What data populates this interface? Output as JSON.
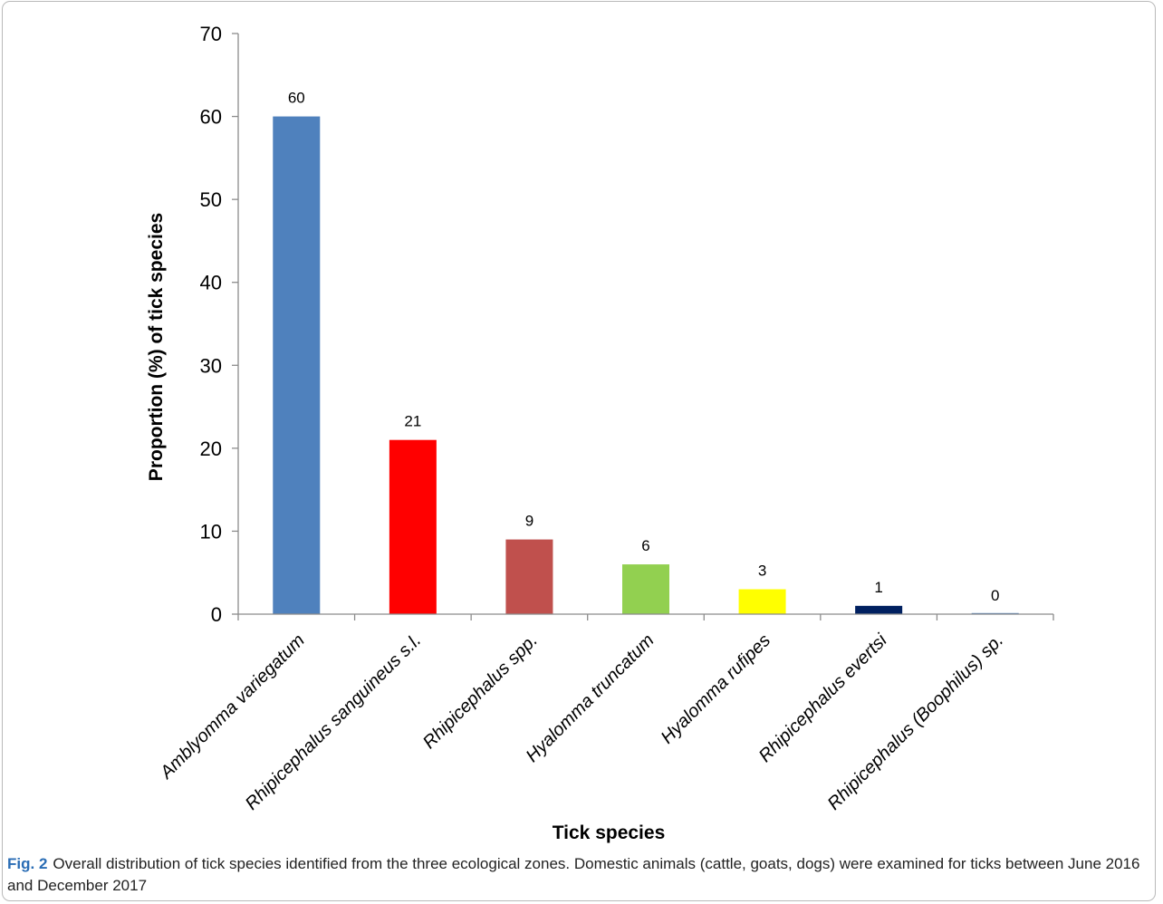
{
  "chart_data": {
    "type": "bar",
    "categories": [
      "Amblyomma variegatum",
      "Rhipicephalus sanguineus s.l.",
      "Rhipicephalus spp.",
      "Hyalomma truncatum",
      "Hyalomma rufipes",
      "Rhipicephalus evertsi",
      "Rhipicephalus (Boophilus) sp."
    ],
    "values": [
      60,
      21,
      9,
      6,
      3,
      1,
      0
    ],
    "value_labels": [
      "60",
      "21",
      "9",
      "6",
      "3",
      "1",
      "0"
    ],
    "colors": [
      "#4f81bd",
      "#ff0000",
      "#c0504d",
      "#92d050",
      "#ffff00",
      "#002060",
      "#4f81bd"
    ],
    "xlabel": "Tick species",
    "ylabel": "Proportion (%) of tick species",
    "ylim": [
      0,
      70
    ],
    "yticks": [
      0,
      10,
      20,
      30,
      40,
      50,
      60,
      70
    ],
    "grid": false,
    "legend": "none"
  },
  "caption": {
    "label": "Fig. 2",
    "text": "Overall distribution of tick species identified from the three ecological zones. Domestic animals (cattle, goats, dogs) were examined for ticks between June 2016 and December 2017"
  }
}
